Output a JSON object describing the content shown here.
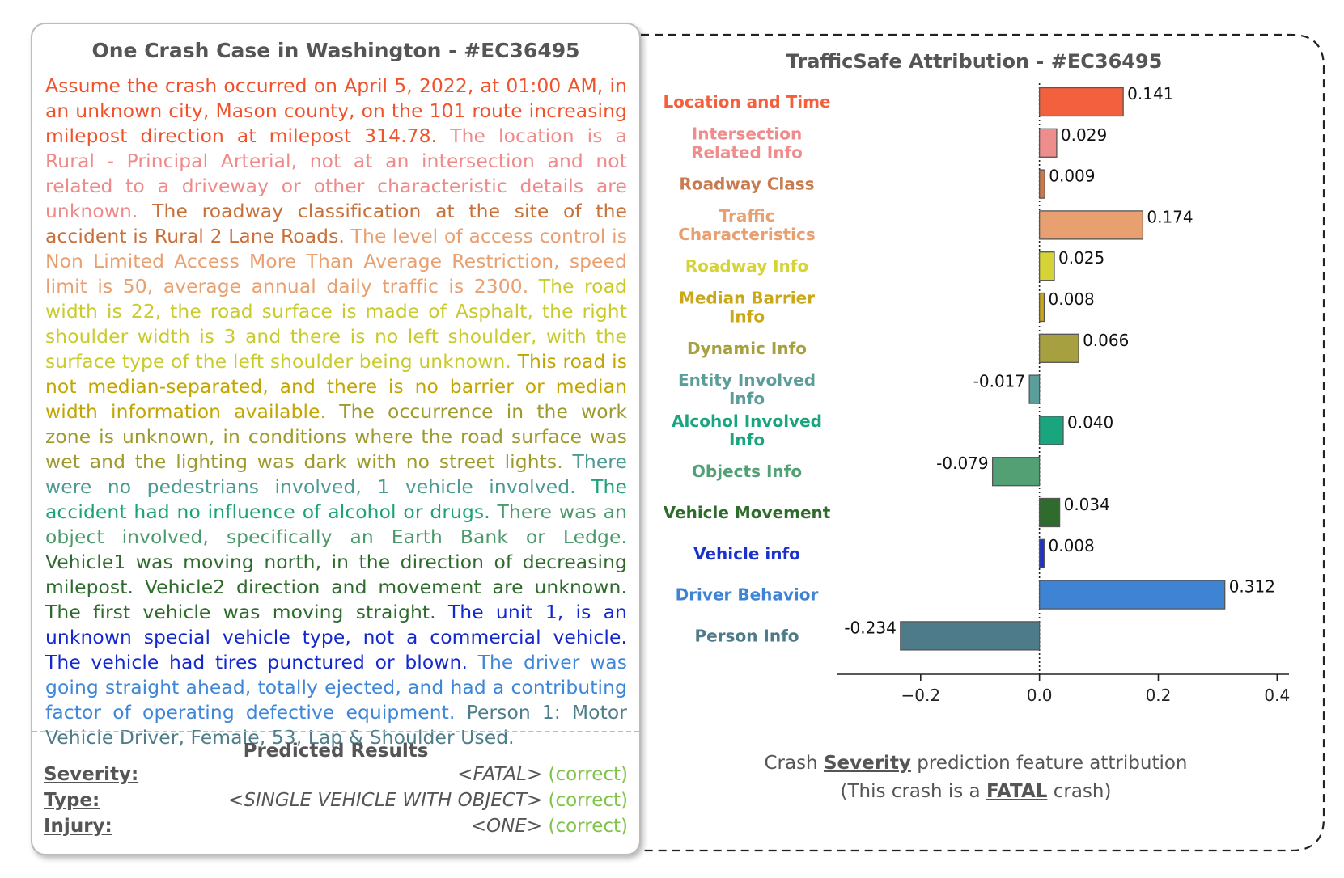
{
  "left_panel": {
    "title": "One Crash Case in Washington - #EC36495",
    "segments": [
      {
        "text": "Assume the crash occurred on April 5, 2022, at 01:00 AM, in an unknown city, Mason county, on the 101 route increasing milepost direction at milepost 314.78.",
        "color": "#f0522c"
      },
      {
        "text": "The location is a Rural - Principal Arterial, not at an intersection and not related to a driveway or other characteristic details are unknown.",
        "color": "#ef8a8a"
      },
      {
        "text": "The roadway classification at the site of the accident is Rural 2 Lane Roads.",
        "color": "#c8703a"
      },
      {
        "text": "The level of access control is Non Limited Access More Than Average Restriction, speed limit is 50, average annual daily traffic is 2300.",
        "color": "#e8a070"
      },
      {
        "text": "The road width is 22, the road surface is made of Asphalt, the right shoulder width is 3 and there is no left shoulder, with the surface type of the left shoulder being unknown.",
        "color": "#c9cb2c"
      },
      {
        "text": "This road is not median-separated, and there is no barrier or median width information available.",
        "color": "#c3a500"
      },
      {
        "text": "The occurrence in the work zone is unknown, in conditions where the road surface was wet and the lighting was dark with no street lights.",
        "color": "#9e9a2c"
      },
      {
        "text": "There were no pedestrians involved, 1 vehicle involved.",
        "color": "#4c9a92"
      },
      {
        "text": "The accident had no influence of alcohol or drugs.",
        "color": "#1aa37a"
      },
      {
        "text": "There was an object involved, specifically an Earth Bank or Ledge.",
        "color": "#4c9a6c"
      },
      {
        "text": "Vehicle1 was moving north, in the direction of decreasing milepost. Vehicle2 direction and movement are unknown. The first vehicle was moving straight.",
        "color": "#2e6b2c"
      },
      {
        "text": "The unit 1, is an unknown special vehicle type, not a commercial vehicle. The vehicle had tires punctured or blown.",
        "color": "#1428d0"
      },
      {
        "text": "The driver was going straight ahead, totally ejected, and had a contributing factor of operating defective equipment.",
        "color": "#3e86d8"
      },
      {
        "text": "Person 1: Motor Vehicle Driver, Female, 53, Lap & Shoulder Used.",
        "color": "#4e7d8a"
      }
    ]
  },
  "predicted": {
    "title": "Predicted Results",
    "rows": [
      {
        "label": "Severity:",
        "value": "<FATAL>",
        "status": "correct"
      },
      {
        "label": "Type:",
        "value": "<SINGLE VEHICLE WITH OBJECT>",
        "status": "correct"
      },
      {
        "label": "Injury:",
        "value": "<ONE>",
        "status": "correct"
      }
    ]
  },
  "chart_data": {
    "type": "bar",
    "orientation": "horizontal",
    "title": "TrafficSafe Attribution - #EC36495",
    "categories": [
      "Location and Time",
      "Intersection Related Info",
      "Roadway Class",
      "Traffic Characteristics",
      "Roadway Info",
      "Median Barrier Info",
      "Dynamic Info",
      "Entity Involved Info",
      "Alcohol Involved Info",
      "Objects Info",
      "Vehicle Movement",
      "Vehicle info",
      "Driver Behavior",
      "Person Info"
    ],
    "label_lines": [
      [
        "Location and Time"
      ],
      [
        "Intersection",
        "Related Info"
      ],
      [
        "Roadway Class"
      ],
      [
        "Traffic",
        "Characteristics"
      ],
      [
        "Roadway Info"
      ],
      [
        "Median Barrier",
        "Info"
      ],
      [
        "Dynamic Info"
      ],
      [
        "Entity Involved",
        "Info"
      ],
      [
        "Alcohol Involved",
        "Info"
      ],
      [
        "Objects Info"
      ],
      [
        "Vehicle Movement"
      ],
      [
        "Vehicle info"
      ],
      [
        "Driver Behavior"
      ],
      [
        "Person Info"
      ]
    ],
    "values": [
      0.141,
      0.029,
      0.009,
      0.174,
      0.025,
      0.008,
      0.066,
      -0.017,
      0.04,
      -0.079,
      0.034,
      0.008,
      0.312,
      -0.234
    ],
    "value_labels": [
      "0.141",
      "0.029",
      "0.009",
      "0.174",
      "0.025",
      "0.008",
      "0.066",
      "-0.017",
      "0.040",
      "-0.079",
      "0.034",
      "0.008",
      "0.312",
      "-0.234"
    ],
    "colors": [
      "#f2603d",
      "#ef8c8c",
      "#c97a4e",
      "#e8a070",
      "#d6d337",
      "#c9a716",
      "#a7a040",
      "#5b9e99",
      "#19a57e",
      "#52a074",
      "#2f6b2c",
      "#1b33cc",
      "#3f83d5",
      "#4d7b8a"
    ],
    "xlim": [
      -0.34,
      0.42
    ],
    "xticks": [
      -0.2,
      0.0,
      0.2,
      0.4
    ],
    "xtick_labels": [
      "−0.2",
      "0.0",
      "0.2",
      "0.4"
    ],
    "xlabel": "",
    "ylabel": "",
    "grid": false
  },
  "caption": {
    "line1_pre": "Crash ",
    "line1_bold": "Severity",
    "line1_post": " prediction feature attribution",
    "line2_pre": "(This crash is a ",
    "line2_bold": "FATAL",
    "line2_post": " crash)"
  }
}
